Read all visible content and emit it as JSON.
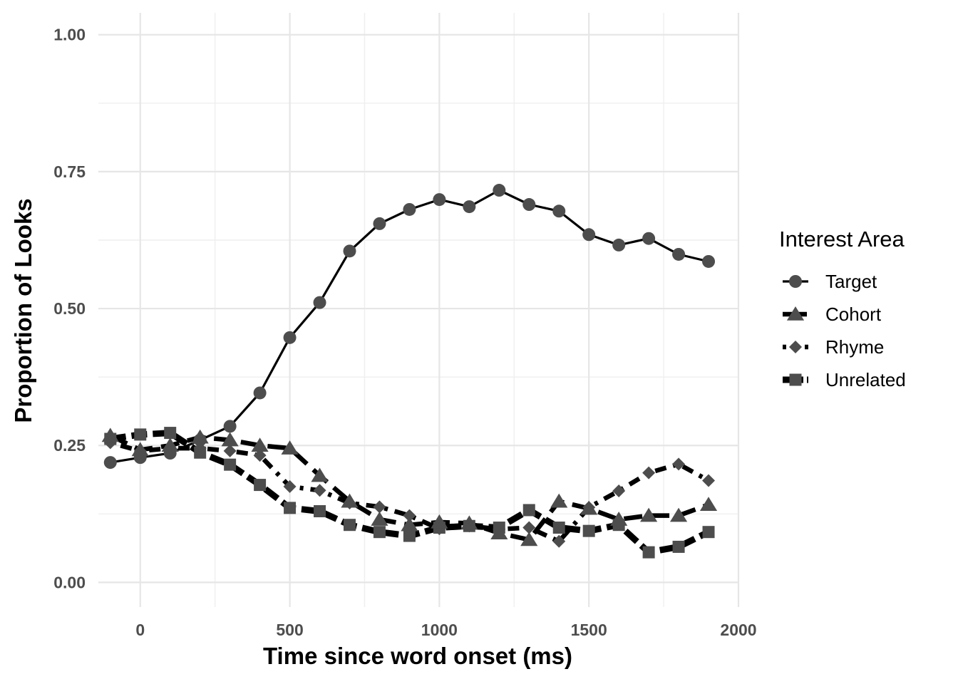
{
  "chart_data": {
    "type": "line",
    "title": "",
    "xlabel": "Time since word onset (ms)",
    "ylabel": "Proportion of Looks",
    "xlim": [
      -140,
      2000
    ],
    "ylim": [
      -0.045,
      1.04
    ],
    "x_ticks": [
      0,
      500,
      1000,
      1500,
      2000
    ],
    "x_tick_labels": [
      "0",
      "500",
      "1000",
      "1500",
      "2000"
    ],
    "y_ticks": [
      0,
      0.25,
      0.5,
      0.75,
      1
    ],
    "y_tick_labels": [
      "0.00",
      "0.25",
      "0.50",
      "0.75",
      "1.00"
    ],
    "grid": true,
    "legend": {
      "title": "Interest Area",
      "position": "right"
    },
    "x": [
      -100,
      0,
      100,
      200,
      300,
      400,
      500,
      600,
      700,
      800,
      900,
      1000,
      1100,
      1200,
      1300,
      1400,
      1500,
      1600,
      1700,
      1800,
      1900
    ],
    "series": [
      {
        "name": "Target",
        "marker": "circle",
        "dash": "solid",
        "values": [
          0.219,
          0.228,
          0.236,
          0.26,
          0.285,
          0.346,
          0.447,
          0.511,
          0.605,
          0.655,
          0.681,
          0.699,
          0.686,
          0.716,
          0.69,
          0.678,
          0.635,
          0.616,
          0.628,
          0.599,
          0.586
        ]
      },
      {
        "name": "Cohort",
        "marker": "triangle",
        "dash": "long-dash",
        "values": [
          0.268,
          0.242,
          0.25,
          0.265,
          0.26,
          0.25,
          0.245,
          0.195,
          0.148,
          0.115,
          0.105,
          0.11,
          0.108,
          0.09,
          0.078,
          0.148,
          0.135,
          0.115,
          0.122,
          0.122,
          0.142
        ]
      },
      {
        "name": "Rhyme",
        "marker": "diamond",
        "dash": "dot-dash",
        "values": [
          0.255,
          0.24,
          0.245,
          0.245,
          0.24,
          0.232,
          0.175,
          0.168,
          0.145,
          0.138,
          0.122,
          0.098,
          0.103,
          0.097,
          0.1,
          0.075,
          0.137,
          0.167,
          0.2,
          0.216,
          0.186
        ]
      },
      {
        "name": "Unrelated",
        "marker": "square",
        "dash": "heavy-dash",
        "values": [
          0.262,
          0.27,
          0.273,
          0.237,
          0.215,
          0.178,
          0.136,
          0.13,
          0.105,
          0.092,
          0.085,
          0.1,
          0.103,
          0.1,
          0.132,
          0.1,
          0.094,
          0.105,
          0.055,
          0.065,
          0.092
        ]
      }
    ],
    "colors": {
      "line": "#000000",
      "marker": "#4d4d4d",
      "grid": "#e6e6e6"
    }
  }
}
